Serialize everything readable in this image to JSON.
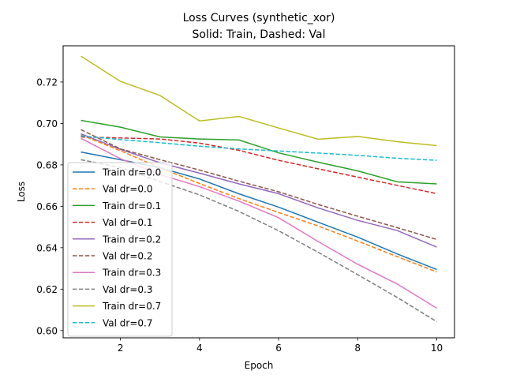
{
  "chart_data": {
    "type": "line",
    "title": "Loss Curves (synthetic_xor)",
    "subtitle": "Solid: Train, Dashed: Val",
    "xlabel": "Epoch",
    "ylabel": "Loss",
    "xlim": [
      0.55,
      10.45
    ],
    "ylim": [
      0.5965,
      0.7375
    ],
    "xticks": [
      2,
      4,
      6,
      8,
      10
    ],
    "yticks": [
      0.6,
      0.62,
      0.64,
      0.66,
      0.68,
      0.7,
      0.72
    ],
    "grid": false,
    "legend_position": "lower left",
    "x": [
      1,
      2,
      3,
      4,
      5,
      6,
      7,
      8,
      9,
      10
    ],
    "series": [
      {
        "name": "Train dr=0.0",
        "style": "solid",
        "color": "#1f77b4",
        "values": [
          0.6862,
          0.6825,
          0.6786,
          0.6732,
          0.666,
          0.6596,
          0.6523,
          0.6451,
          0.637,
          0.6295
        ]
      },
      {
        "name": "Val dr=0.0",
        "style": "dashed",
        "color": "#ff7f0e",
        "values": [
          0.6945,
          0.6868,
          0.6786,
          0.671,
          0.6637,
          0.657,
          0.6505,
          0.6432,
          0.6357,
          0.6283
        ]
      },
      {
        "name": "Train dr=0.1",
        "style": "solid",
        "color": "#2ca02c",
        "values": [
          0.7015,
          0.6982,
          0.6935,
          0.6925,
          0.692,
          0.6858,
          0.6813,
          0.6771,
          0.6718,
          0.6708
        ]
      },
      {
        "name": "Val dr=0.1",
        "style": "dashed",
        "color": "#d62728",
        "values": [
          0.6935,
          0.693,
          0.6925,
          0.6905,
          0.687,
          0.6822,
          0.6781,
          0.6741,
          0.6701,
          0.6661
        ]
      },
      {
        "name": "Train dr=0.2",
        "style": "solid",
        "color": "#9467bd",
        "values": [
          0.695,
          0.6875,
          0.681,
          0.676,
          0.6708,
          0.6661,
          0.6592,
          0.6532,
          0.6483,
          0.6403
        ]
      },
      {
        "name": "Val dr=0.2",
        "style": "dashed",
        "color": "#8c564b",
        "values": [
          0.697,
          0.6877,
          0.6825,
          0.6775,
          0.6721,
          0.667,
          0.6609,
          0.6552,
          0.6497,
          0.644
        ]
      },
      {
        "name": "Train dr=0.3",
        "style": "solid",
        "color": "#e377c2",
        "values": [
          0.6928,
          0.683,
          0.6753,
          0.6695,
          0.6625,
          0.6545,
          0.643,
          0.632,
          0.6225,
          0.6108
        ]
      },
      {
        "name": "Val dr=0.3",
        "style": "dashed",
        "color": "#7f7f7f",
        "values": [
          0.6825,
          0.6787,
          0.672,
          0.6655,
          0.6575,
          0.6482,
          0.6378,
          0.627,
          0.616,
          0.6043
        ]
      },
      {
        "name": "Train dr=0.7",
        "style": "solid",
        "color": "#bcbd22",
        "values": [
          0.7325,
          0.7203,
          0.7135,
          0.7012,
          0.7034,
          0.6978,
          0.6924,
          0.6937,
          0.6912,
          0.6893
        ]
      },
      {
        "name": "Val dr=0.7",
        "style": "dashed",
        "color": "#17becf",
        "values": [
          0.694,
          0.6922,
          0.6907,
          0.689,
          0.6877,
          0.6867,
          0.6857,
          0.6846,
          0.6832,
          0.6822
        ]
      }
    ]
  }
}
